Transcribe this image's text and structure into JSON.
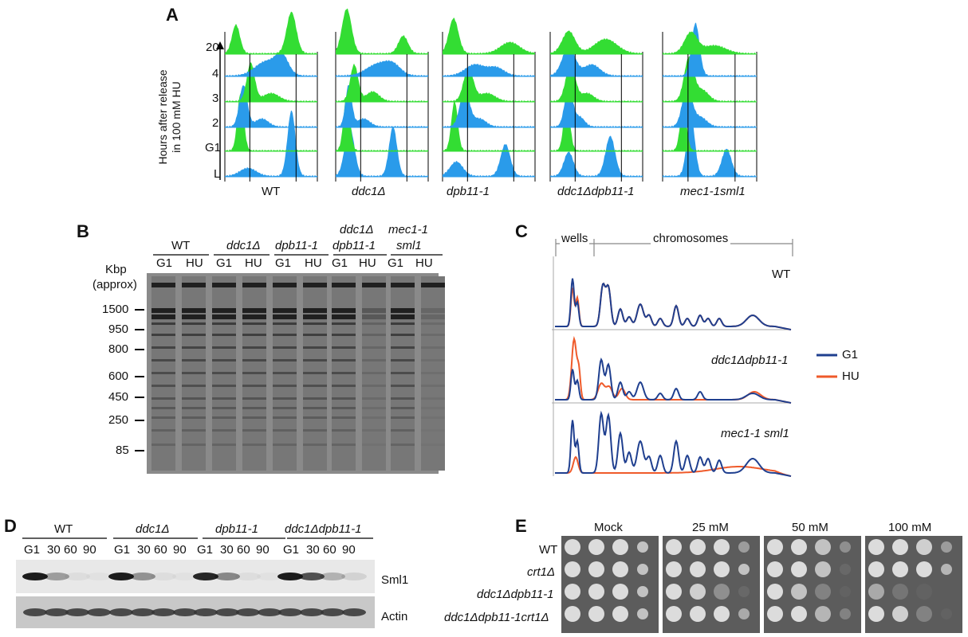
{
  "panelA": {
    "letter": "A",
    "yaxis_title_line1": "Hours after release",
    "yaxis_title_line2": "in 100 mM HU",
    "row_labels": [
      "20",
      "4",
      "3",
      "2",
      "G1",
      "L"
    ],
    "strains": [
      "WT",
      "ddc1Δ",
      "dpb11-1",
      "ddc1Δdpb11-1",
      "mec1-1sml1"
    ],
    "colors": {
      "green": "#33dd33",
      "blue": "#2a9bea"
    }
  },
  "panelB": {
    "letter": "B",
    "kbp_label1": "Kbp",
    "kbp_label2": "(approx)",
    "markers": [
      "1500",
      "950",
      "800",
      "600",
      "450",
      "250",
      "85"
    ],
    "groups": [
      {
        "name": "WT"
      },
      {
        "name": "ddc1Δ"
      },
      {
        "name": "dpb11-1"
      },
      {
        "name_line1": "ddc1Δ",
        "name_line2": "dpb11-1"
      },
      {
        "name_line1": "mec1-1",
        "name_line2": "sml1"
      }
    ],
    "lane_labels": [
      "G1",
      "HU",
      "G1",
      "HU",
      "G1",
      "HU",
      "G1",
      "HU",
      "G1",
      "HU"
    ]
  },
  "panelC": {
    "letter": "C",
    "wells_label": "wells",
    "chromosomes_label": "chromosomes",
    "trace_labels": [
      "WT",
      "ddc1Δdpb11-1",
      "mec1-1 sml1"
    ],
    "legend": [
      {
        "name": "G1",
        "color": "#1f3f8f"
      },
      {
        "name": "HU",
        "color": "#ef5a2a"
      }
    ]
  },
  "panelD": {
    "letter": "D",
    "groups": [
      "WT",
      "ddc1Δ",
      "dpb11-1",
      "ddc1Δdpb11-1"
    ],
    "timepoints": [
      "G1",
      "30",
      "60",
      "90"
    ],
    "row_labels": [
      "Sml1",
      "Actin"
    ]
  },
  "panelE": {
    "letter": "E",
    "conditions": [
      "Mock",
      "25 mM",
      "50 mM",
      "100 mM"
    ],
    "strains": [
      "WT",
      "crt1Δ",
      "ddc1Δdpb11-1",
      "ddc1Δdpb11-1crt1Δ"
    ]
  }
}
